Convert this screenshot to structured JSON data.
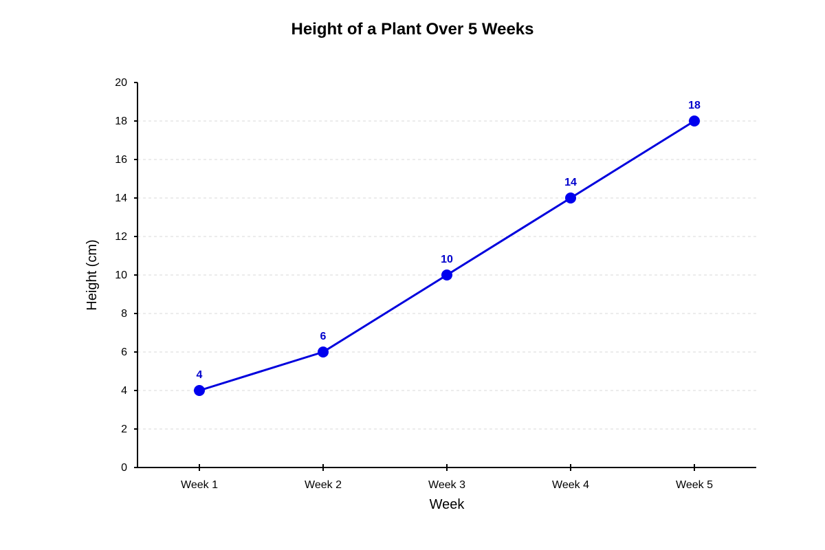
{
  "chart_data": {
    "type": "line",
    "title": "Height of a Plant Over 5 Weeks",
    "xlabel": "Week",
    "ylabel": "Height (cm)",
    "categories": [
      "Week 1",
      "Week 2",
      "Week 3",
      "Week 4",
      "Week 5"
    ],
    "values": [
      4,
      6,
      10,
      14,
      18
    ],
    "ylim": [
      0,
      20
    ],
    "y_ticks": [
      0,
      2,
      4,
      6,
      8,
      10,
      12,
      14,
      16,
      18,
      20
    ],
    "grid": true,
    "data_labels": [
      "4",
      "6",
      "10",
      "14",
      "18"
    ],
    "line_color": "#0000dd",
    "marker_color": "#0000ee",
    "label_color": "#0000cc"
  }
}
